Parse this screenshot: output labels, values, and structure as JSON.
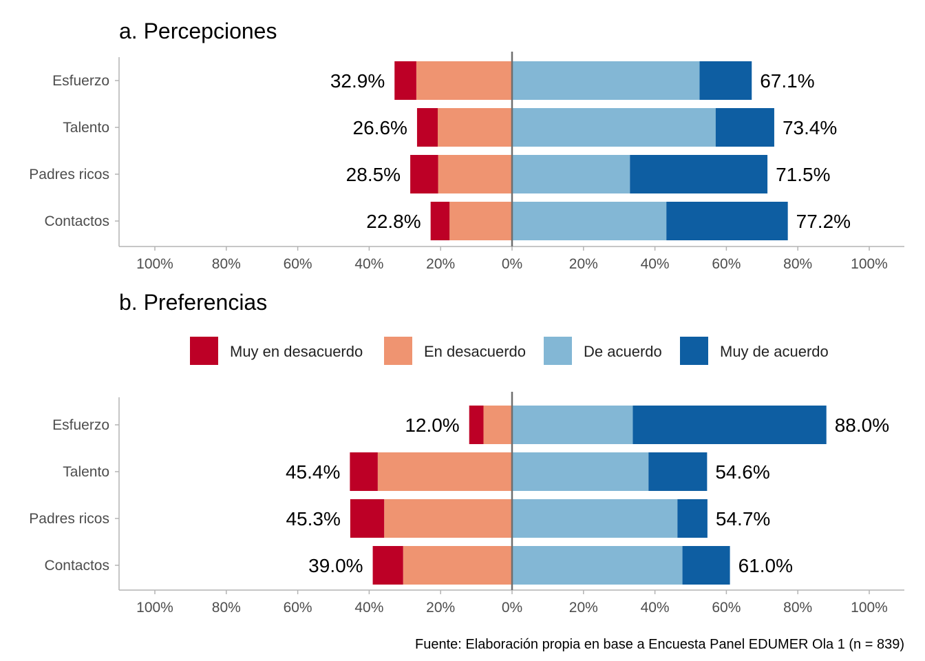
{
  "chart_data": [
    {
      "type": "bar",
      "orientation": "horizontal-diverging",
      "title": "a. Percepciones",
      "categories": [
        "Esfuerzo",
        "Talento",
        "Padres ricos",
        "Contactos"
      ],
      "xlim": [
        -100,
        100
      ],
      "xticks": [
        "100%",
        "80%",
        "60%",
        "40%",
        "20%",
        "0%",
        "20%",
        "40%",
        "60%",
        "80%",
        "100%"
      ],
      "series": [
        {
          "name": "Muy en desacuerdo",
          "values": [
            6.1,
            5.8,
            7.8,
            5.3
          ]
        },
        {
          "name": "En desacuerdo",
          "values": [
            26.8,
            20.8,
            20.7,
            17.5
          ]
        },
        {
          "name": "De acuerdo",
          "values": [
            52.5,
            57.0,
            33.0,
            43.2
          ]
        },
        {
          "name": "Muy de acuerdo",
          "values": [
            14.6,
            16.4,
            38.5,
            34.0
          ]
        }
      ],
      "negative_totals": [
        "32.9%",
        "26.6%",
        "28.5%",
        "22.8%"
      ],
      "positive_totals": [
        "67.1%",
        "73.4%",
        "71.5%",
        "77.2%"
      ],
      "grid": false
    },
    {
      "type": "bar",
      "orientation": "horizontal-diverging",
      "title": "b. Preferencias",
      "categories": [
        "Esfuerzo",
        "Talento",
        "Padres ricos",
        "Contactos"
      ],
      "xlim": [
        -100,
        100
      ],
      "xticks": [
        "100%",
        "80%",
        "60%",
        "40%",
        "20%",
        "0%",
        "20%",
        "40%",
        "60%",
        "80%",
        "100%"
      ],
      "series": [
        {
          "name": "Muy en desacuerdo",
          "values": [
            4.0,
            7.8,
            9.5,
            8.5
          ]
        },
        {
          "name": "En desacuerdo",
          "values": [
            8.0,
            37.6,
            35.8,
            30.5
          ]
        },
        {
          "name": "De acuerdo",
          "values": [
            33.8,
            38.2,
            46.3,
            47.7
          ]
        },
        {
          "name": "Muy de acuerdo",
          "values": [
            54.2,
            16.4,
            8.4,
            13.3
          ]
        }
      ],
      "negative_totals": [
        "12.0%",
        "45.4%",
        "45.3%",
        "39.0%"
      ],
      "positive_totals": [
        "88.0%",
        "54.6%",
        "54.7%",
        "61.0%"
      ],
      "grid": false
    }
  ],
  "legend": {
    "position": "between panels",
    "items": [
      {
        "label": "Muy en desacuerdo",
        "color": "#BD0026"
      },
      {
        "label": "En desacuerdo",
        "color": "#EF9471"
      },
      {
        "label": "De acuerdo",
        "color": "#83B7D5"
      },
      {
        "label": "Muy de acuerdo",
        "color": "#0E5EA2"
      }
    ]
  },
  "caption": "Fuente: Elaboración propia en base a Encuesta Panel EDUMER Ola 1 (n = 839)"
}
